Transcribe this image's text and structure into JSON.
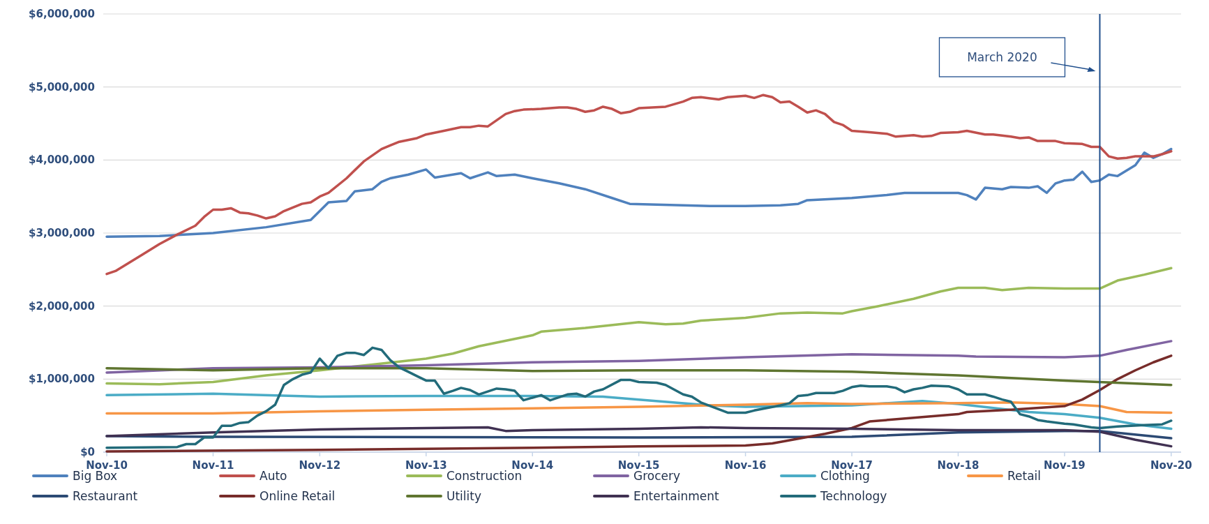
{
  "chart_data": {
    "type": "line",
    "ylim": [
      0,
      6000000
    ],
    "yticks": [
      {
        "value": 0,
        "label": "$0"
      },
      {
        "value": 1000000,
        "label": "$1,000,000"
      },
      {
        "value": 2000000,
        "label": "$2,000,000"
      },
      {
        "value": 3000000,
        "label": "$3,000,000"
      },
      {
        "value": 4000000,
        "label": "$4,000,000"
      },
      {
        "value": 5000000,
        "label": "$5,000,000"
      },
      {
        "value": 6000000,
        "label": "$6,000,000"
      }
    ],
    "xlim": [
      "2010-10-20",
      "2020-12-05"
    ],
    "xticks": [
      {
        "value": "2010-11",
        "label": "Nov-10"
      },
      {
        "value": "2011-11",
        "label": "Nov-11"
      },
      {
        "value": "2012-11",
        "label": "Nov-12"
      },
      {
        "value": "2013-11",
        "label": "Nov-13"
      },
      {
        "value": "2014-11",
        "label": "Nov-14"
      },
      {
        "value": "2015-11",
        "label": "Nov-15"
      },
      {
        "value": "2016-11",
        "label": "Nov-16"
      },
      {
        "value": "2017-11",
        "label": "Nov-17"
      },
      {
        "value": "2018-11",
        "label": "Nov-18"
      },
      {
        "value": "2019-11",
        "label": "Nov-19"
      },
      {
        "value": "2020-11",
        "label": "Nov-20"
      }
    ],
    "grid": "y",
    "legend": "bottom",
    "line_style": "solid",
    "ref_lines": [
      {
        "axis": "x",
        "value": "2020-03",
        "label": "March 2020",
        "color": "#1f4e8c"
      }
    ],
    "series": [
      {
        "name": "Big Box",
        "color": "#4f81bd",
        "x": [
          "2010-11",
          "2011-05",
          "2011-11",
          "2012-05",
          "2012-10",
          "2012-12",
          "2013-02",
          "2013-03",
          "2013-05",
          "2013-06",
          "2013-07",
          "2013-09",
          "2013-11",
          "2013-12",
          "2014-03",
          "2014-04",
          "2014-06",
          "2014-07",
          "2014-09",
          "2014-11",
          "2015-02",
          "2015-05",
          "2015-08",
          "2015-10",
          "2016-01",
          "2016-07",
          "2016-11",
          "2017-03",
          "2017-05",
          "2017-06",
          "2017-11",
          "2018-03",
          "2018-05",
          "2018-11",
          "2018-12",
          "2019-01",
          "2019-02",
          "2019-04",
          "2019-05",
          "2019-07",
          "2019-08",
          "2019-09",
          "2019-10",
          "2019-11",
          "2019-12",
          "2020-01",
          "2020-02",
          "2020-03",
          "2020-04",
          "2020-05",
          "2020-07",
          "2020-08",
          "2020-09",
          "2020-10",
          "2020-11"
        ],
        "values": [
          2950000,
          2960000,
          3000000,
          3080000,
          3180000,
          3420000,
          3440000,
          3570000,
          3600000,
          3700000,
          3750000,
          3800000,
          3870000,
          3760000,
          3820000,
          3750000,
          3830000,
          3780000,
          3800000,
          3750000,
          3680000,
          3600000,
          3480000,
          3400000,
          3390000,
          3370000,
          3370000,
          3380000,
          3400000,
          3450000,
          3480000,
          3520000,
          3550000,
          3550000,
          3520000,
          3460000,
          3620000,
          3600000,
          3630000,
          3620000,
          3640000,
          3550000,
          3680000,
          3720000,
          3730000,
          3840000,
          3700000,
          3720000,
          3800000,
          3780000,
          3930000,
          4100000,
          4030000,
          4080000,
          4150000
        ]
      },
      {
        "name": "Auto",
        "color": "#c0504d",
        "x": [
          "2010-11",
          "2010-12",
          "2011-03",
          "2011-05",
          "2011-07",
          "2011-09",
          "2011-10",
          "2011-11",
          "2011-12",
          "2012-01",
          "2012-02",
          "2012-03",
          "2012-04",
          "2012-05",
          "2012-06",
          "2012-07",
          "2012-09",
          "2012-10",
          "2012-11",
          "2012-12",
          "2013-02",
          "2013-04",
          "2013-06",
          "2013-07",
          "2013-08",
          "2013-10",
          "2013-11",
          "2014-01",
          "2014-03",
          "2014-04",
          "2014-05",
          "2014-06",
          "2014-08",
          "2014-09",
          "2014-10",
          "2014-12",
          "2015-02",
          "2015-03",
          "2015-04",
          "2015-05",
          "2015-06",
          "2015-07",
          "2015-08",
          "2015-09",
          "2015-10",
          "2015-11",
          "2016-02",
          "2016-04",
          "2016-05",
          "2016-06",
          "2016-08",
          "2016-09",
          "2016-11",
          "2016-12",
          "2017-01",
          "2017-02",
          "2017-03",
          "2017-04",
          "2017-05",
          "2017-06",
          "2017-07",
          "2017-08",
          "2017-09",
          "2017-10",
          "2017-11",
          "2018-01",
          "2018-03",
          "2018-04",
          "2018-06",
          "2018-07",
          "2018-08",
          "2018-09",
          "2018-11",
          "2018-12",
          "2019-02",
          "2019-03",
          "2019-05",
          "2019-06",
          "2019-07",
          "2019-08",
          "2019-10",
          "2019-11",
          "2020-01",
          "2020-02",
          "2020-03",
          "2020-04",
          "2020-05",
          "2020-06",
          "2020-07",
          "2020-09",
          "2020-10",
          "2020-11"
        ],
        "values": [
          2440000,
          2480000,
          2700000,
          2850000,
          2980000,
          3100000,
          3220000,
          3320000,
          3320000,
          3340000,
          3280000,
          3270000,
          3240000,
          3200000,
          3230000,
          3300000,
          3400000,
          3420000,
          3500000,
          3550000,
          3750000,
          3980000,
          4150000,
          4200000,
          4250000,
          4300000,
          4350000,
          4400000,
          4450000,
          4450000,
          4470000,
          4460000,
          4630000,
          4670000,
          4690000,
          4700000,
          4720000,
          4720000,
          4700000,
          4660000,
          4680000,
          4730000,
          4700000,
          4640000,
          4660000,
          4710000,
          4730000,
          4800000,
          4850000,
          4860000,
          4830000,
          4860000,
          4880000,
          4850000,
          4890000,
          4860000,
          4790000,
          4800000,
          4730000,
          4650000,
          4680000,
          4630000,
          4520000,
          4480000,
          4400000,
          4380000,
          4360000,
          4320000,
          4340000,
          4320000,
          4330000,
          4370000,
          4380000,
          4400000,
          4350000,
          4350000,
          4320000,
          4300000,
          4310000,
          4260000,
          4260000,
          4230000,
          4220000,
          4180000,
          4180000,
          4050000,
          4020000,
          4030000,
          4050000,
          4050000,
          4080000,
          4120000
        ]
      },
      {
        "name": "Construction",
        "color": "#9bbb59",
        "x": [
          "2010-11",
          "2011-05",
          "2011-11",
          "2012-05",
          "2012-11",
          "2013-05",
          "2013-11",
          "2014-02",
          "2014-05",
          "2014-11",
          "2014-12",
          "2015-05",
          "2015-11",
          "2016-02",
          "2016-04",
          "2016-06",
          "2016-11",
          "2017-03",
          "2017-06",
          "2017-10",
          "2017-11",
          "2018-02",
          "2018-06",
          "2018-09",
          "2018-11",
          "2019-02",
          "2019-04",
          "2019-07",
          "2019-11",
          "2020-03",
          "2020-05",
          "2020-08",
          "2020-11"
        ],
        "values": [
          940000,
          930000,
          960000,
          1050000,
          1120000,
          1200000,
          1280000,
          1350000,
          1450000,
          1600000,
          1650000,
          1700000,
          1780000,
          1750000,
          1760000,
          1800000,
          1840000,
          1900000,
          1910000,
          1900000,
          1930000,
          2000000,
          2100000,
          2200000,
          2250000,
          2250000,
          2220000,
          2250000,
          2240000,
          2240000,
          2350000,
          2430000,
          2520000
        ]
      },
      {
        "name": "Grocery",
        "color": "#8064a2",
        "x": [
          "2010-11",
          "2011-11",
          "2012-11",
          "2013-11",
          "2014-11",
          "2015-11",
          "2016-11",
          "2017-11",
          "2018-11",
          "2019-01",
          "2019-11",
          "2020-03",
          "2020-06",
          "2020-11"
        ],
        "values": [
          1090000,
          1150000,
          1160000,
          1190000,
          1230000,
          1250000,
          1300000,
          1340000,
          1320000,
          1310000,
          1300000,
          1320000,
          1400000,
          1520000
        ]
      },
      {
        "name": "Clothing",
        "color": "#4bacc6",
        "x": [
          "2010-11",
          "2011-11",
          "2012-11",
          "2013-11",
          "2014-11",
          "2015-07",
          "2015-11",
          "2016-07",
          "2016-11",
          "2017-11",
          "2018-07",
          "2018-11",
          "2019-07",
          "2019-11",
          "2020-03",
          "2020-07",
          "2020-11"
        ],
        "values": [
          780000,
          800000,
          760000,
          770000,
          770000,
          760000,
          720000,
          640000,
          620000,
          640000,
          700000,
          660000,
          550000,
          520000,
          470000,
          380000,
          320000
        ]
      },
      {
        "name": "Retail",
        "color": "#f79646",
        "x": [
          "2010-11",
          "2011-11",
          "2012-11",
          "2013-11",
          "2014-11",
          "2015-11",
          "2016-11",
          "2017-06",
          "2017-11",
          "2018-11",
          "2019-05",
          "2019-11",
          "2020-03",
          "2020-06",
          "2020-11"
        ],
        "values": [
          530000,
          530000,
          560000,
          580000,
          600000,
          620000,
          650000,
          670000,
          660000,
          670000,
          680000,
          660000,
          630000,
          550000,
          540000
        ]
      },
      {
        "name": "Restaurant",
        "color": "#2c4a74",
        "x": [
          "2010-11",
          "2011-11",
          "2015-11",
          "2017-11",
          "2018-11",
          "2019-11",
          "2020-03",
          "2020-11"
        ],
        "values": [
          220000,
          210000,
          200000,
          210000,
          270000,
          290000,
          290000,
          190000
        ]
      },
      {
        "name": "Online Retail",
        "color": "#772c2a",
        "x": [
          "2010-11",
          "2012-11",
          "2014-11",
          "2015-11",
          "2016-11",
          "2017-02",
          "2017-08",
          "2017-11",
          "2018-01",
          "2018-06",
          "2018-11",
          "2018-12",
          "2019-05",
          "2019-11",
          "2020-01",
          "2020-03",
          "2020-05",
          "2020-07",
          "2020-09",
          "2020-11"
        ],
        "values": [
          10000,
          30000,
          60000,
          80000,
          90000,
          120000,
          250000,
          330000,
          420000,
          470000,
          520000,
          550000,
          580000,
          630000,
          720000,
          850000,
          1000000,
          1120000,
          1230000,
          1320000
        ]
      },
      {
        "name": "Utility",
        "color": "#5f7530",
        "x": [
          "2010-11",
          "2011-11",
          "2012-11",
          "2013-11",
          "2014-11",
          "2015-11",
          "2016-11",
          "2017-11",
          "2018-11",
          "2019-11",
          "2020-11"
        ],
        "values": [
          1150000,
          1120000,
          1150000,
          1150000,
          1110000,
          1120000,
          1120000,
          1100000,
          1050000,
          980000,
          920000
        ]
      },
      {
        "name": "Entertainment",
        "color": "#403152",
        "x": [
          "2010-11",
          "2011-11",
          "2012-11",
          "2013-11",
          "2014-06",
          "2014-08",
          "2014-11",
          "2015-11",
          "2016-06",
          "2016-11",
          "2017-11",
          "2018-11",
          "2019-11",
          "2020-03",
          "2020-07",
          "2020-11"
        ],
        "values": [
          220000,
          270000,
          310000,
          330000,
          340000,
          290000,
          300000,
          320000,
          340000,
          330000,
          320000,
          300000,
          300000,
          280000,
          170000,
          80000
        ]
      },
      {
        "name": "Technology",
        "color": "#226b7a",
        "x": [
          "2010-11",
          "2011-07",
          "2011-08",
          "2011-09",
          "2011-10",
          "2011-11",
          "2011-12",
          "2012-01",
          "2012-02",
          "2012-03",
          "2012-04",
          "2012-05",
          "2012-06",
          "2012-07",
          "2012-08",
          "2012-09",
          "2012-10",
          "2012-11",
          "2012-12",
          "2013-01",
          "2013-02",
          "2013-03",
          "2013-04",
          "2013-05",
          "2013-06",
          "2013-07",
          "2013-08",
          "2013-09",
          "2013-10",
          "2013-11",
          "2013-12",
          "2014-01",
          "2014-02",
          "2014-03",
          "2014-04",
          "2014-05",
          "2014-07",
          "2014-08",
          "2014-09",
          "2014-10",
          "2014-12",
          "2015-01",
          "2015-03",
          "2015-04",
          "2015-05",
          "2015-06",
          "2015-07",
          "2015-09",
          "2015-10",
          "2015-11",
          "2016-01",
          "2016-02",
          "2016-04",
          "2016-05",
          "2016-06",
          "2016-09",
          "2016-11",
          "2016-12",
          "2017-03",
          "2017-04",
          "2017-05",
          "2017-06",
          "2017-07",
          "2017-09",
          "2017-10",
          "2017-11",
          "2017-12",
          "2018-01",
          "2018-03",
          "2018-04",
          "2018-05",
          "2018-06",
          "2018-07",
          "2018-08",
          "2018-10",
          "2018-11",
          "2018-12",
          "2019-02",
          "2019-03",
          "2019-04",
          "2019-05",
          "2019-06",
          "2019-07",
          "2019-08",
          "2019-09",
          "2019-11",
          "2019-12",
          "2020-02",
          "2020-03",
          "2020-05",
          "2020-08",
          "2020-10",
          "2020-11"
        ],
        "values": [
          60000,
          70000,
          110000,
          110000,
          200000,
          200000,
          360000,
          360000,
          400000,
          410000,
          500000,
          560000,
          650000,
          920000,
          1000000,
          1060000,
          1090000,
          1280000,
          1150000,
          1320000,
          1360000,
          1360000,
          1330000,
          1430000,
          1400000,
          1260000,
          1160000,
          1100000,
          1040000,
          980000,
          980000,
          800000,
          840000,
          880000,
          850000,
          790000,
          870000,
          860000,
          840000,
          710000,
          780000,
          710000,
          790000,
          800000,
          760000,
          830000,
          860000,
          990000,
          990000,
          960000,
          950000,
          920000,
          790000,
          760000,
          680000,
          540000,
          540000,
          570000,
          640000,
          670000,
          770000,
          780000,
          810000,
          810000,
          840000,
          890000,
          910000,
          900000,
          900000,
          880000,
          820000,
          860000,
          880000,
          910000,
          900000,
          860000,
          790000,
          790000,
          760000,
          720000,
          690000,
          520000,
          490000,
          440000,
          420000,
          390000,
          380000,
          340000,
          330000,
          350000,
          370000,
          380000,
          430000
        ]
      }
    ]
  }
}
